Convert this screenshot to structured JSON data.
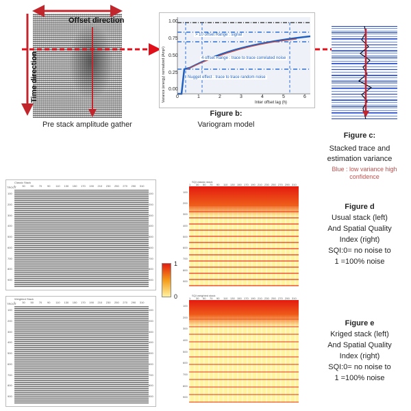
{
  "colors": {
    "arrow_red": "#c0262c",
    "dashed_red": "#e0101b",
    "variogram_blue": "#1f5fbf",
    "dash_blue": "#2b6fd6",
    "sqi_red": "#e31b10",
    "sqi_yellow": "#fff2a0",
    "caption_red": "#c0504d"
  },
  "gather": {
    "offset_direction": "Offset direction",
    "time_direction": "Time direction",
    "caption": "Pre stack amplitude gather"
  },
  "figure_b": {
    "label": "Figure b:",
    "caption": "Variogram model",
    "y_axis_label": "Variance (energy) normalized (Amp²)",
    "x_axis_label": "Inter offset lag (h)",
    "y_ticks": [
      "1.00",
      "0.75",
      "0.50",
      "0.25",
      "0.00"
    ],
    "x_ticks": [
      "0",
      "1",
      "2",
      "3",
      "4",
      "5",
      "6"
    ],
    "annotations": {
      "signal": "> 10 offset Range : signal",
      "correlated": "4 offset Range : trace to trace  correlated noise",
      "nugget": "Nugget effect : trace to trace  random noise"
    }
  },
  "figure_c": {
    "label": "Figure c:",
    "line1": "Stacked trace and",
    "line2": "estimation variance",
    "note": "Blue : low variance high confidence"
  },
  "colorbar": {
    "max": "1",
    "min": "0"
  },
  "figure_d": {
    "label": "Figure d",
    "lines": [
      "Usual stack (left)",
      "And Spatial Quality",
      "Index (right)",
      "SQI:0=  no noise to",
      "1 =100% noise"
    ],
    "left_panel_title": "Classic Stack",
    "right_panel_title": "SQI classic stack"
  },
  "figure_e": {
    "label": "Figure e",
    "lines": [
      "Kriged  stack (left)",
      "And Spatial Quality",
      "Index (right)",
      "SQI:0=  no noise to",
      "1 =100% noise"
    ],
    "left_panel_title": "Weighted Stack",
    "right_panel_title": "SQI weighted stack"
  },
  "panel_axis": {
    "corner": "TROOT",
    "x_ticks": [
      "1",
      "30",
      "50",
      "70",
      "90",
      "110",
      "130",
      "150",
      "170",
      "190",
      "210",
      "230",
      "250",
      "270",
      "290",
      "310"
    ],
    "y_ticks": [
      "100",
      "200",
      "300",
      "400",
      "500",
      "600",
      "700",
      "800",
      "900"
    ]
  }
}
